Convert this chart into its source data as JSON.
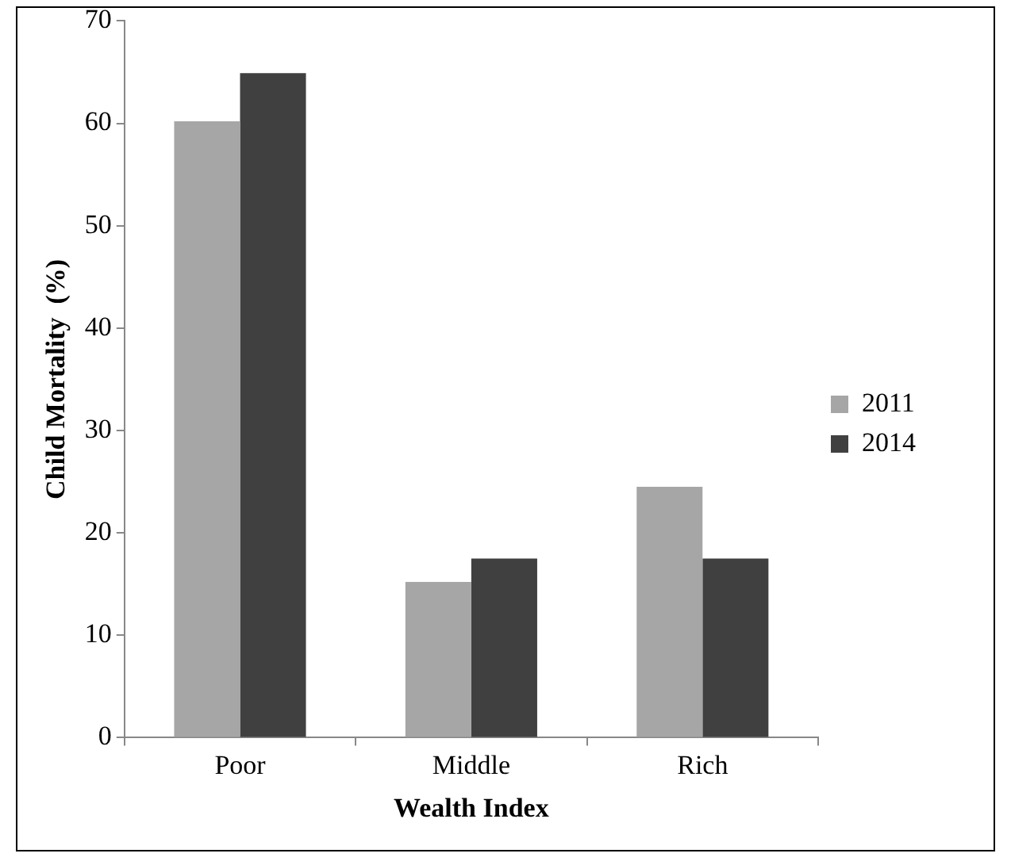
{
  "chart_data": {
    "type": "bar",
    "xlabel": "Wealth Index",
    "ylabel": "Child Mortality  (%)",
    "categories": [
      "Poor",
      "Middle",
      "Rich"
    ],
    "series": [
      {
        "name": "2011",
        "color": "#a6a6a6",
        "values": [
          60.2,
          15.2,
          24.5
        ]
      },
      {
        "name": "2014",
        "color": "#404040",
        "values": [
          64.9,
          17.5,
          17.5
        ]
      }
    ],
    "ylim": [
      0,
      70
    ],
    "yticks": [
      0,
      10,
      20,
      30,
      40,
      50,
      60,
      70
    ],
    "grid": false,
    "legend": "right"
  }
}
